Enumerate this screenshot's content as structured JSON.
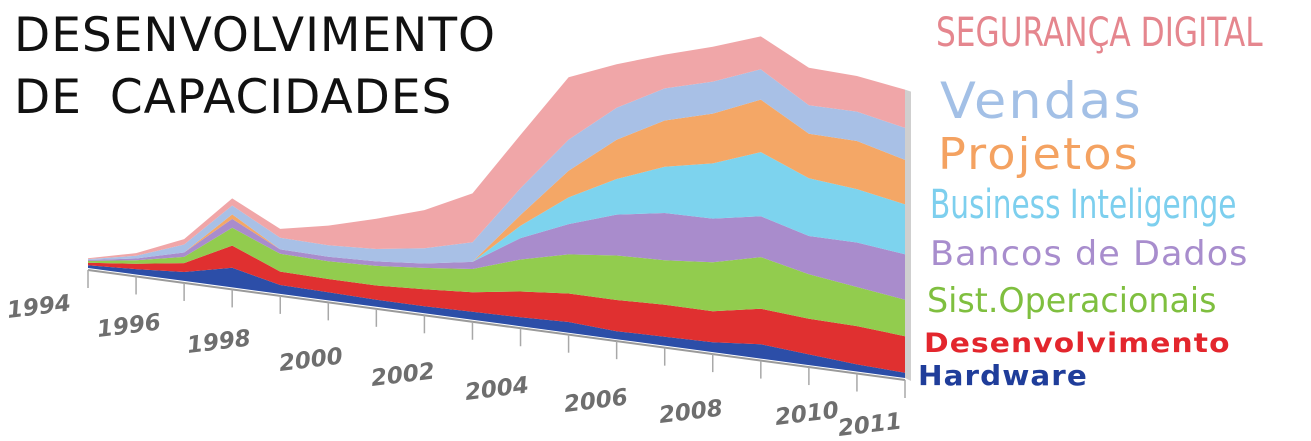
{
  "title": {
    "line1": "DESENVOLVIMENTO",
    "line2": "DE  CAPACIDADES"
  },
  "chart_data": {
    "type": "area",
    "stacked": true,
    "three_d": true,
    "x": [
      1994,
      1995,
      1996,
      1997,
      1998,
      1999,
      2000,
      2001,
      2002,
      2003,
      2004,
      2005,
      2006,
      2007,
      2008,
      2009,
      2010,
      2011
    ],
    "x_tick_labels": [
      "1994",
      "1996",
      "1998",
      "2000",
      "2002",
      "2004",
      "2006",
      "2008",
      "2010",
      "2011"
    ],
    "series": [
      {
        "name": "Hardware",
        "color": "#2c4ea8",
        "values": [
          0.3,
          0.6,
          1.0,
          2.2,
          1.0,
          0.9,
          0.8,
          0.8,
          0.9,
          1.0,
          1.2,
          0.9,
          1.0,
          1.1,
          1.6,
          1.2,
          0.8,
          0.6
        ]
      },
      {
        "name": "Desenvolvimento",
        "color": "#e03030",
        "values": [
          0.3,
          0.6,
          1.0,
          2.5,
          1.5,
          1.5,
          1.6,
          1.9,
          2.2,
          2.9,
          3.2,
          3.5,
          3.6,
          3.5,
          4.0,
          4.0,
          4.3,
          4.1
        ]
      },
      {
        "name": "Sist.Operacionais",
        "color": "#92cc4e",
        "values": [
          0.2,
          0.4,
          0.7,
          2.0,
          2.0,
          2.0,
          2.2,
          2.4,
          2.6,
          3.6,
          4.4,
          5.0,
          5.0,
          5.5,
          5.8,
          5.0,
          4.4,
          4.1
        ]
      },
      {
        "name": "Bancos de Dados",
        "color": "#a98ccc",
        "values": [
          0.1,
          0.2,
          0.5,
          1.0,
          0.5,
          0.5,
          0.5,
          0.5,
          0.8,
          2.4,
          3.4,
          4.6,
          5.3,
          4.9,
          4.6,
          4.3,
          5.0,
          5.1
        ]
      },
      {
        "name": "Business Inteligenge",
        "color": "#7dd3ee",
        "values": [
          0.0,
          0.0,
          0.0,
          0.0,
          0.0,
          0.0,
          0.0,
          0.0,
          0.0,
          1.4,
          3.0,
          4.0,
          5.2,
          6.2,
          7.2,
          6.5,
          6.0,
          5.6
        ]
      },
      {
        "name": "Projetos",
        "color": "#f4a766",
        "values": [
          0.0,
          0.0,
          0.0,
          0.5,
          0.0,
          0.0,
          0.0,
          0.0,
          0.0,
          1.2,
          3.0,
          4.4,
          5.2,
          5.6,
          5.9,
          5.0,
          5.4,
          5.0
        ]
      },
      {
        "name": "Vendas",
        "color": "#a8c0e6",
        "values": [
          0.1,
          0.3,
          0.9,
          1.0,
          1.3,
          1.3,
          1.4,
          1.7,
          2.2,
          3.0,
          3.5,
          3.6,
          3.6,
          3.6,
          3.4,
          3.2,
          3.3,
          3.6
        ]
      },
      {
        "name": "SEGURANÇA DIGITAL",
        "color": "#f0a6a8",
        "values": [
          0.1,
          0.3,
          0.6,
          0.8,
          1.0,
          2.2,
          3.4,
          4.3,
          5.5,
          6.0,
          7.0,
          4.9,
          3.8,
          3.9,
          3.7,
          4.2,
          4.0,
          4.3
        ]
      }
    ],
    "legend_position": "right",
    "grid": false
  },
  "legend": [
    {
      "label": "SEGURANÇA DIGITAL",
      "color": "#e5868e"
    },
    {
      "label": "Vendas",
      "color": "#a3c0e6"
    },
    {
      "label": "Projetos",
      "color": "#f4a261"
    },
    {
      "label": "Business Inteligenge",
      "color": "#7dcfee"
    },
    {
      "label": "Bancos de Dados",
      "color": "#a88dcd"
    },
    {
      "label": "Sist.Operacionais",
      "color": "#7fbf3f"
    },
    {
      "label": "Desenvolvimento",
      "color": "#e3262d"
    },
    {
      "label": "Hardware",
      "color": "#1f3d9a"
    }
  ]
}
